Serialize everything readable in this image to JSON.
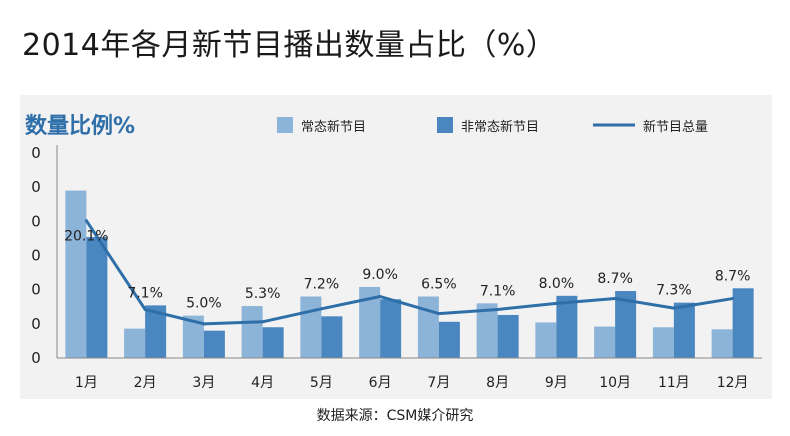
{
  "page": {
    "title": "2014年各月新节目播出数量占比（%）",
    "source": "数据来源：CSM媒介研究"
  },
  "colors": {
    "regular_bar": "#8cb4d8",
    "nonregular_bar": "#4a86bf",
    "total_line": "#2f6fa8",
    "title_blue": "#2e6fa9",
    "panel_bg": "#f2f2f2"
  },
  "chart_data": {
    "type": "bar",
    "title": "数量比例%",
    "categories": [
      "1月",
      "2月",
      "3月",
      "4月",
      "5月",
      "6月",
      "7月",
      "8月",
      "9月",
      "10月",
      "11月",
      "12月"
    ],
    "ytick_labels": [
      "0",
      "0",
      "0",
      "0",
      "0",
      "0",
      "0"
    ],
    "ylim": [
      0,
      30
    ],
    "legend_position": "top",
    "series": [
      {
        "name": "常态新节目",
        "kind": "bar",
        "values": [
          24.5,
          4.3,
          6.2,
          7.6,
          9.0,
          10.4,
          9.0,
          8.0,
          5.2,
          4.6,
          4.5,
          4.2
        ]
      },
      {
        "name": "非常态新节目",
        "kind": "bar",
        "values": [
          17.7,
          7.7,
          4.0,
          4.5,
          6.1,
          8.6,
          5.3,
          6.3,
          9.1,
          9.8,
          8.1,
          10.2
        ]
      },
      {
        "name": "新节目总量",
        "kind": "line",
        "values": [
          20.1,
          7.1,
          5.0,
          5.3,
          7.2,
          9.0,
          6.5,
          7.1,
          8.0,
          8.7,
          7.3,
          8.7
        ],
        "labels": [
          "20.1%",
          "7.1%",
          "5.0%",
          "5.3%",
          "7.2%",
          "9.0%",
          "6.5%",
          "7.1%",
          "8.0%",
          "8.7%",
          "7.3%",
          "8.7%"
        ]
      }
    ]
  }
}
